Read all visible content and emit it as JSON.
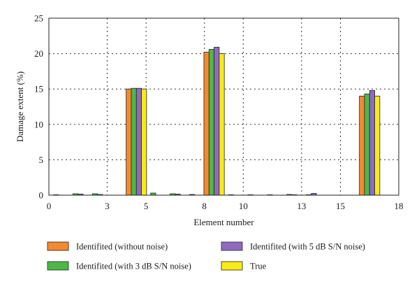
{
  "chart_data": {
    "type": "bar",
    "xlabel": "Element number",
    "ylabel": "Damage extent (%)",
    "xlim": [
      0,
      18
    ],
    "ylim": [
      0,
      25
    ],
    "x_ticks": [
      0,
      3,
      5,
      8,
      10,
      13,
      15,
      18
    ],
    "y_ticks": [
      0,
      5,
      10,
      15,
      20,
      25
    ],
    "grid": true,
    "legend_placement": "below",
    "categories": [
      1,
      2,
      3,
      4,
      5,
      6,
      7,
      8,
      9,
      10,
      11,
      12,
      13,
      14,
      15,
      16,
      17
    ],
    "series": [
      {
        "name": "Identifited (without noise)",
        "color": "#F28A2E",
        "values": [
          0,
          0,
          0,
          0,
          15.0,
          0,
          0,
          0,
          20.2,
          0,
          0,
          0,
          0,
          0,
          0,
          0,
          14.0
        ]
      },
      {
        "name": "Identifited (with 3 dB S/N noise)",
        "color": "#4DB848",
        "values": [
          0.05,
          0.2,
          0.2,
          0,
          15.1,
          0.3,
          0.2,
          0.1,
          20.6,
          0.05,
          0.05,
          0.05,
          0.1,
          0.05,
          0,
          0,
          14.3
        ]
      },
      {
        "name": "Identifited (with 5 dB S/N noise)",
        "color": "#8E6BBF",
        "values": [
          0,
          0.15,
          0.1,
          0,
          15.1,
          0,
          0.15,
          0,
          20.9,
          0,
          0,
          0,
          0.05,
          0.25,
          0,
          0,
          14.8
        ]
      },
      {
        "name": "True",
        "color": "#F7EC13",
        "values": [
          0,
          0,
          0,
          0,
          15.0,
          0,
          0,
          0,
          20.0,
          0,
          0,
          0,
          0,
          0,
          0,
          0,
          14.0
        ]
      }
    ]
  }
}
